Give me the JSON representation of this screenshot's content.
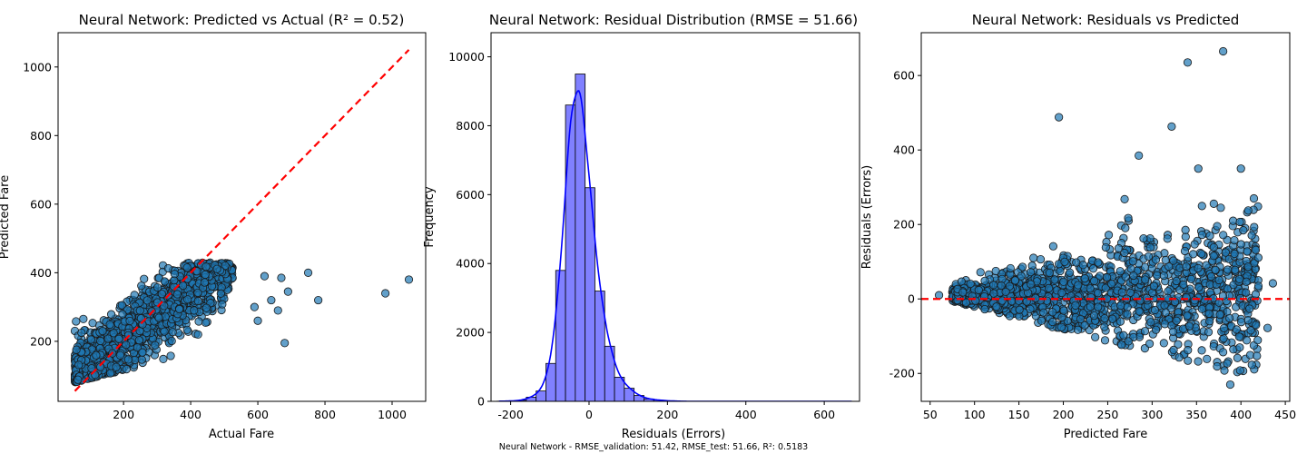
{
  "footer": "Neural Network - RMSE_validation: 51.42, RMSE_test: 51.66, R²: 0.5183",
  "chart_data": [
    {
      "type": "scatter",
      "title": "Neural Network: Predicted vs Actual (R² = 0.52)",
      "xlabel": "Actual Fare",
      "ylabel": "Predicted Fare",
      "xlim": [
        5,
        1100
      ],
      "ylim": [
        25,
        1100
      ],
      "xticks": [
        200,
        400,
        600,
        800,
        1000
      ],
      "yticks": [
        200,
        400,
        600,
        800,
        1000
      ],
      "grid": false,
      "point_color": "#1f77b4",
      "reference_line": {
        "x": [
          55,
          1050
        ],
        "y": [
          55,
          1050
        ],
        "color": "#ff0000",
        "style": "dashed"
      },
      "outliers": [
        {
          "x": 980,
          "y": 340
        },
        {
          "x": 1050,
          "y": 380
        },
        {
          "x": 750,
          "y": 400
        },
        {
          "x": 780,
          "y": 320
        },
        {
          "x": 680,
          "y": 195
        },
        {
          "x": 690,
          "y": 345
        },
        {
          "x": 640,
          "y": 320
        },
        {
          "x": 620,
          "y": 390
        },
        {
          "x": 670,
          "y": 385
        },
        {
          "x": 660,
          "y": 290
        },
        {
          "x": 600,
          "y": 260
        },
        {
          "x": 590,
          "y": 300
        }
      ]
    },
    {
      "type": "bar",
      "title": "Neural Network: Residual Distribution (RMSE = 51.66)",
      "xlabel": "Residuals (Errors)",
      "ylabel": "Frequency",
      "xlim": [
        -250,
        690
      ],
      "ylim": [
        0,
        10700
      ],
      "xticks": [
        -200,
        0,
        200,
        400,
        600
      ],
      "yticks": [
        0,
        2000,
        4000,
        6000,
        8000,
        10000
      ],
      "bar_color": "#8080ff",
      "kde_color": "#0000ff",
      "bins": [
        {
          "x": -222.5,
          "count": 5
        },
        {
          "x": -197.5,
          "count": 10
        },
        {
          "x": -172.5,
          "count": 30
        },
        {
          "x": -147.5,
          "count": 120
        },
        {
          "x": -122.5,
          "count": 300
        },
        {
          "x": -97.5,
          "count": 1100
        },
        {
          "x": -72.5,
          "count": 3800
        },
        {
          "x": -47.5,
          "count": 8600
        },
        {
          "x": -22.5,
          "count": 9500
        },
        {
          "x": 2.5,
          "count": 6200
        },
        {
          "x": 27.5,
          "count": 3200
        },
        {
          "x": 52.5,
          "count": 1600
        },
        {
          "x": 77.5,
          "count": 700
        },
        {
          "x": 102.5,
          "count": 380
        },
        {
          "x": 127.5,
          "count": 170
        },
        {
          "x": 152.5,
          "count": 70
        },
        {
          "x": 177.5,
          "count": 35
        },
        {
          "x": 202.5,
          "count": 15
        },
        {
          "x": 227.5,
          "count": 5
        }
      ],
      "bin_width": 25
    },
    {
      "type": "scatter",
      "title": "Neural Network: Residuals vs Predicted",
      "xlabel": "Predicted Fare",
      "ylabel": "Residuals (Errors)",
      "xlim": [
        40,
        455
      ],
      "ylim": [
        -275,
        715
      ],
      "xticks": [
        50,
        100,
        150,
        200,
        250,
        300,
        350,
        400,
        450
      ],
      "yticks": [
        -200,
        0,
        200,
        400,
        600
      ],
      "grid": false,
      "point_color": "#1f77b4",
      "zero_line": {
        "y": 0,
        "color": "#ff0000",
        "style": "dashed"
      },
      "outliers": [
        {
          "x": 340,
          "y": 635
        },
        {
          "x": 380,
          "y": 665
        },
        {
          "x": 195,
          "y": 488
        },
        {
          "x": 322,
          "y": 463
        },
        {
          "x": 285,
          "y": 385
        },
        {
          "x": 400,
          "y": 350
        },
        {
          "x": 352,
          "y": 350
        },
        {
          "x": 388,
          "y": -230
        },
        {
          "x": 418,
          "y": -153
        },
        {
          "x": 60,
          "y": 10
        },
        {
          "x": 436,
          "y": 42
        },
        {
          "x": 430,
          "y": -78
        }
      ]
    }
  ]
}
